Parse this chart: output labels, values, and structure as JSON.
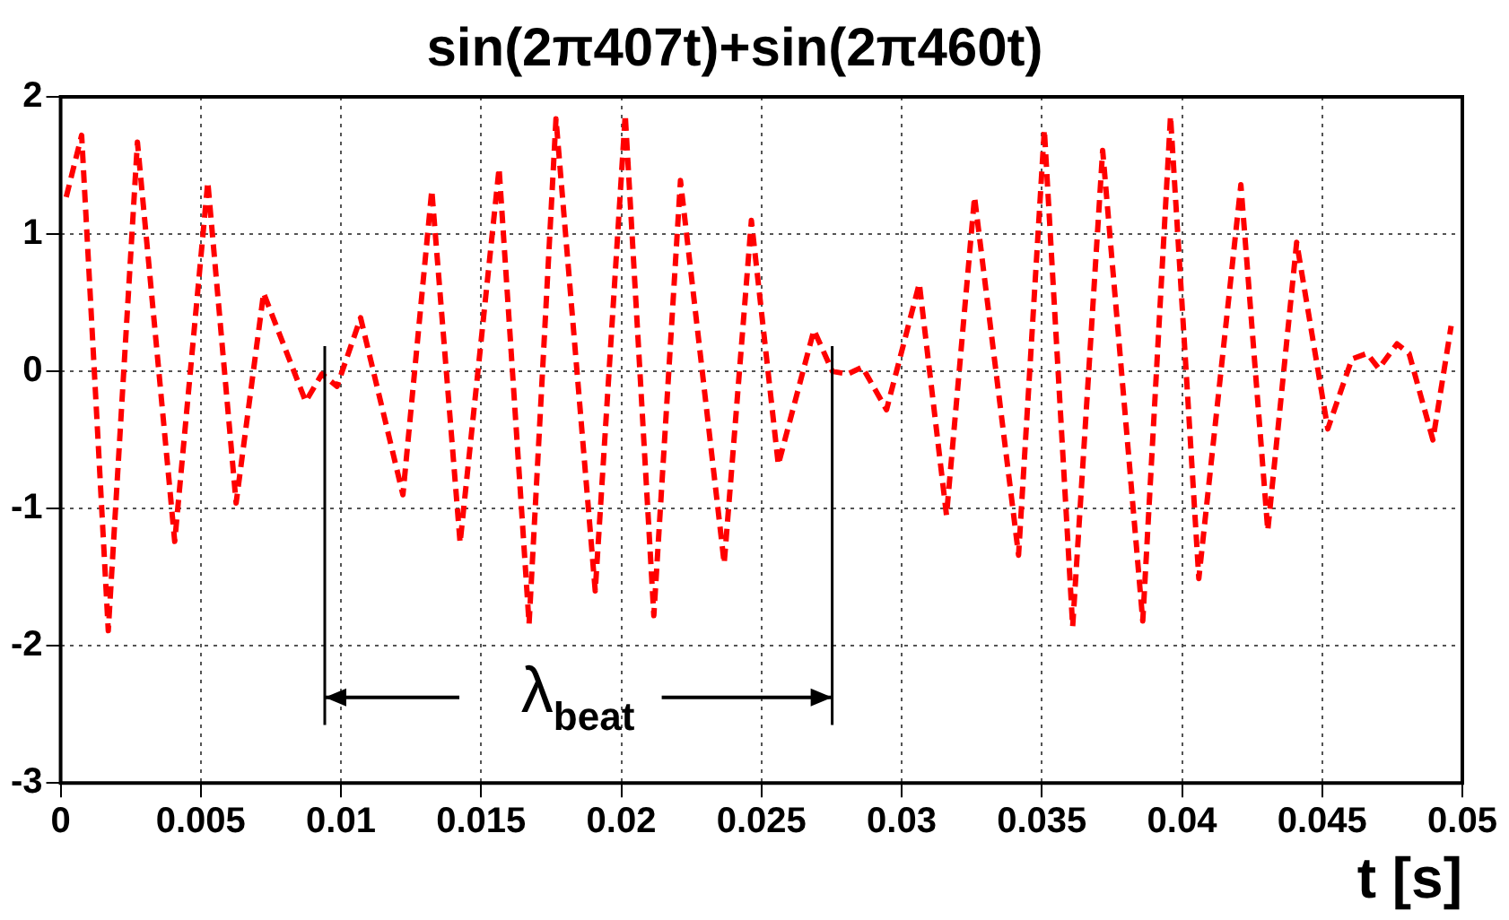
{
  "chart_data": {
    "type": "line",
    "title": "sin(2π407t)+sin(2π460t)",
    "xlabel": "t [s]",
    "xlim": [
      0,
      0.05
    ],
    "xticks": [
      0,
      0.005,
      0.01,
      0.015,
      0.02,
      0.025,
      0.03,
      0.035,
      0.04,
      0.045,
      0.05
    ],
    "ylim": [
      -3,
      2
    ],
    "yticks": [
      -3,
      -2,
      -1,
      0,
      1,
      2
    ],
    "grid": true,
    "legend": false,
    "marker": "none",
    "line_style": "dashed",
    "annotations": [
      "λ$_{beat}$"
    ],
    "series": [
      {
        "color": "#ff0000",
        "x": [
          0.0002,
          0.00075,
          0.0017,
          0.00274,
          0.00407,
          0.00525,
          0.00626,
          0.00724,
          0.00874,
          0.00932,
          0.00986,
          0.0107,
          0.01221,
          0.01324,
          0.01425,
          0.01564,
          0.01671,
          0.01767,
          0.01907,
          0.02014,
          0.02116,
          0.02211,
          0.02367,
          0.02464,
          0.0256,
          0.02687,
          0.02753,
          0.02807,
          0.0286,
          0.02946,
          0.03063,
          0.0316,
          0.0326,
          0.03417,
          0.03509,
          0.0361,
          0.03717,
          0.0386,
          0.03959,
          0.0406,
          0.0421,
          0.04306,
          0.04409,
          0.0452,
          0.04606,
          0.0466,
          0.04702,
          0.04767,
          0.0481,
          0.04895,
          0.0496
        ],
        "values": [
          1.27,
          1.72,
          -1.89,
          1.67,
          -1.24,
          1.38,
          -0.96,
          0.57,
          -0.22,
          -0.02,
          -0.11,
          0.39,
          -0.9,
          1.32,
          -1.25,
          1.48,
          -1.84,
          1.84,
          -1.6,
          1.87,
          -1.78,
          1.39,
          -1.4,
          1.1,
          -0.68,
          0.3,
          0,
          -0.02,
          0.03,
          -0.28,
          0.64,
          -1.05,
          1.27,
          -1.34,
          1.76,
          -1.86,
          1.61,
          -1.82,
          1.86,
          -1.51,
          1.36,
          -1.16,
          0.94,
          -0.42,
          0.09,
          0.13,
          0.02,
          0.2,
          0.13,
          -0.5,
          0.33
        ]
      }
    ]
  }
}
